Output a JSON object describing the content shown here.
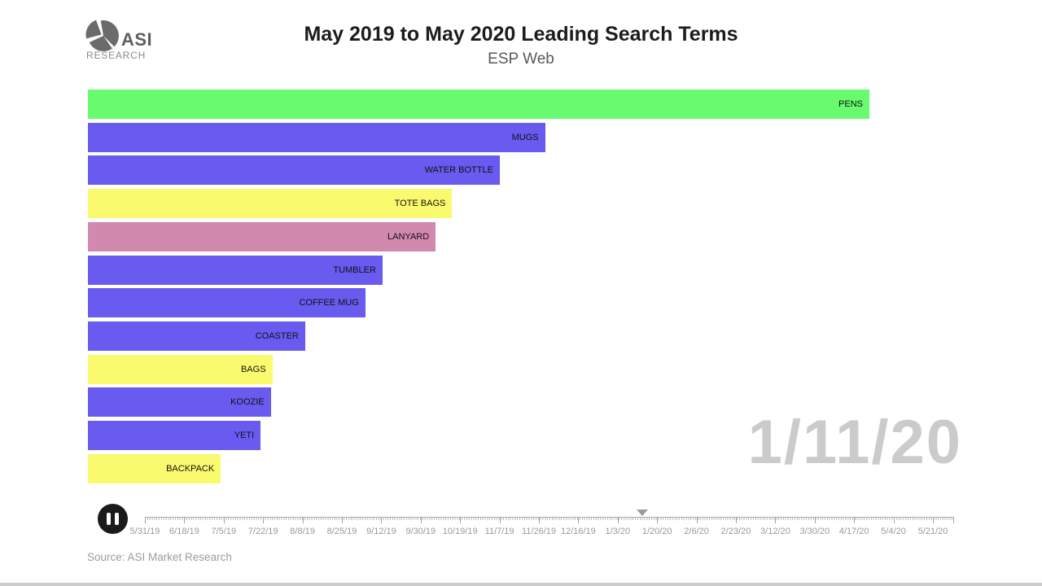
{
  "header": {
    "title": "May 2019 to May 2020 Leading Search Terms",
    "subtitle": "ESP Web",
    "logo": {
      "icon": "pie-chart-icon",
      "text_primary": "ASI",
      "text_secondary": "RESEARCH",
      "color": "#6b6b6b"
    }
  },
  "chart_data": {
    "type": "bar",
    "orientation": "horizontal",
    "title": "May 2019 to May 2020 Leading Search Terms",
    "subtitle": "ESP Web",
    "categories": [
      "PENS",
      "MUGS",
      "WATER BOTTLE",
      "TOTE BAGS",
      "LANYARD",
      "TUMBLER",
      "COFFEE MUG",
      "COASTER",
      "BAGS",
      "KOOZIE",
      "YETI",
      "BACKPACK"
    ],
    "values": [
      100,
      58.5,
      52.7,
      46.6,
      44.5,
      37.7,
      35.5,
      27.8,
      23.6,
      23.4,
      22.1,
      17.0
    ],
    "value_unit": "relative bar length, % of longest bar (no numeric axis shown)",
    "bar_colors": [
      "#68fb70",
      "#695af0",
      "#695af0",
      "#fafa6e",
      "#d289ae",
      "#695af0",
      "#695af0",
      "#695af0",
      "#fafa6e",
      "#695af0",
      "#695af0",
      "#fafa6e"
    ],
    "label_position": "inside-right",
    "grid": false,
    "legend": false,
    "current_frame_date": "1/11/20"
  },
  "date_display": "1/11/20",
  "timeline": {
    "pause_icon": "pause-icon",
    "playhead_icon": "triangle-down-icon",
    "playhead_percent": 61.5,
    "labels": [
      "5/31/19",
      "6/18/19",
      "7/5/19",
      "7/22/19",
      "8/8/19",
      "8/25/19",
      "9/12/19",
      "9/30/19",
      "10/19/19",
      "11/7/19",
      "11/26/19",
      "12/16/19",
      "1/3/20",
      "1/20/20",
      "2/6/20",
      "2/23/20",
      "3/12/20",
      "3/30/20",
      "4/17/20",
      "5/4/20",
      "5/21/20"
    ]
  },
  "footer": {
    "source": "Source: ASI Market Research"
  }
}
